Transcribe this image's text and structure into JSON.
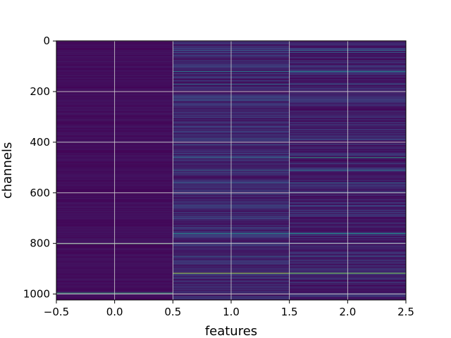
{
  "chart_data": {
    "type": "heatmap",
    "title": "",
    "xlabel": "features",
    "ylabel": "channels",
    "xlim": [
      -0.5,
      2.5
    ],
    "ylim": [
      1023.5,
      -0.5
    ],
    "y_inverted": true,
    "grid": true,
    "colormap": "viridis",
    "n_rows": 1024,
    "columns": [
      0,
      1,
      2
    ],
    "x_ticks": [
      "−0.5",
      "0.0",
      "0.5",
      "1.0",
      "1.5",
      "2.0",
      "2.5"
    ],
    "x_tick_values": [
      -0.5,
      0.0,
      0.5,
      1.0,
      1.5,
      2.0,
      2.5
    ],
    "y_ticks": [
      "0",
      "200",
      "400",
      "600",
      "800",
      "1000"
    ],
    "y_tick_values": [
      0,
      200,
      400,
      600,
      800,
      1000
    ],
    "column_base_values": [
      0.04,
      0.12,
      0.1
    ],
    "highlights": [
      {
        "row": 36,
        "values": [
          0.05,
          0.3,
          0.35
        ]
      },
      {
        "row": 44,
        "values": [
          0.05,
          0.25,
          0.3
        ]
      },
      {
        "row": 120,
        "values": [
          0.05,
          0.4,
          0.45
        ]
      },
      {
        "row": 170,
        "values": [
          0.06,
          0.35,
          0.3
        ]
      },
      {
        "row": 232,
        "values": [
          0.05,
          0.3,
          0.25
        ]
      },
      {
        "row": 300,
        "values": [
          0.04,
          0.25,
          0.2
        ]
      },
      {
        "row": 386,
        "values": [
          0.05,
          0.3,
          0.25
        ]
      },
      {
        "row": 460,
        "values": [
          0.04,
          0.35,
          0.55
        ]
      },
      {
        "row": 510,
        "values": [
          0.05,
          0.35,
          0.4
        ]
      },
      {
        "row": 560,
        "values": [
          0.04,
          0.3,
          0.35
        ]
      },
      {
        "row": 650,
        "values": [
          0.04,
          0.28,
          0.25
        ]
      },
      {
        "row": 760,
        "values": [
          0.04,
          0.45,
          0.5
        ]
      },
      {
        "row": 800,
        "values": [
          0.7,
          0.15,
          0.1
        ]
      },
      {
        "row": 850,
        "values": [
          0.04,
          0.3,
          0.3
        ]
      },
      {
        "row": 917,
        "values": [
          0.05,
          0.85,
          0.8
        ]
      },
      {
        "row": 995,
        "values": [
          0.6,
          0.1,
          0.08
        ]
      }
    ]
  }
}
